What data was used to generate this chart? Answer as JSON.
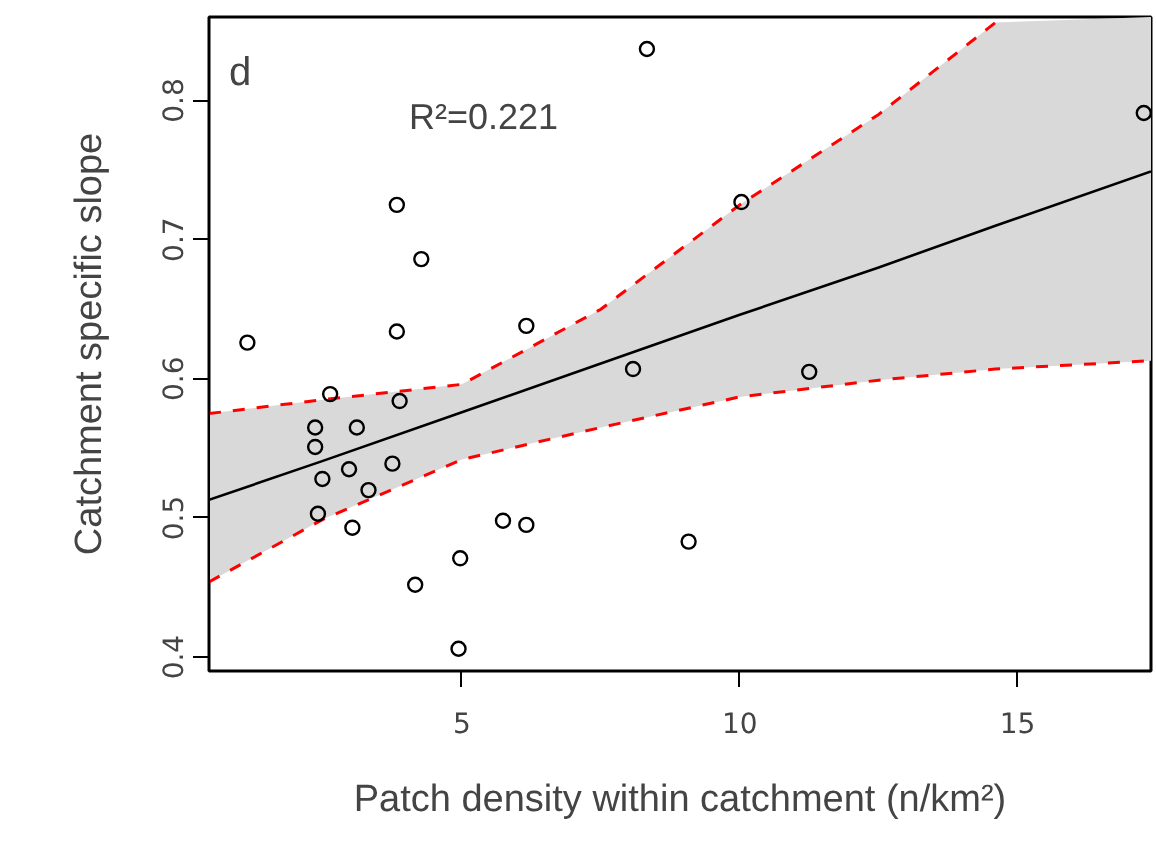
{
  "chart_data": {
    "type": "scatter",
    "xlabel": "Patch density within catchment (n/km²)",
    "ylabel": "Catchment specific slope",
    "annotations": [
      "d",
      "R²=0.221"
    ],
    "xlim": [
      0.45,
      17.4
    ],
    "ylim": [
      0.39,
      0.86
    ],
    "xticks": [
      5,
      10,
      15
    ],
    "yticks": [
      0.4,
      0.5,
      0.6,
      0.7,
      0.8
    ],
    "grid": false,
    "series": [
      {
        "marker": "circle",
        "color": "#000000",
        "x": [
          1.14,
          8.33,
          3.83,
          4.27,
          3.83,
          6.16,
          2.63,
          3.88,
          2.36,
          3.11,
          2.36,
          2.49,
          2.97,
          3.75,
          3.32,
          2.41,
          3.03,
          5.74,
          6.16,
          4.97,
          4.16,
          4.94,
          8.08,
          10.03,
          11.25,
          9.08,
          17.27
        ],
        "values": [
          0.626,
          0.837,
          0.725,
          0.686,
          0.634,
          0.638,
          0.589,
          0.584,
          0.565,
          0.565,
          0.551,
          0.528,
          0.535,
          0.539,
          0.52,
          0.503,
          0.493,
          0.498,
          0.495,
          0.471,
          0.452,
          0.406,
          0.607,
          0.727,
          0.605,
          0.483,
          0.791
        ]
      },
      {
        "type": "line",
        "line_style": "solid",
        "color": "#000000",
        "x": [
          0.45,
          2.5,
          5,
          7.5,
          10,
          12.5,
          14.6,
          17.4
        ],
        "values": [
          0.513,
          0.541,
          0.576,
          0.611,
          0.646,
          0.68,
          0.71,
          0.749
        ],
        "lower": [
          0.454,
          0.499,
          0.542,
          0.565,
          0.587,
          0.599,
          0.607,
          0.613
        ],
        "upper": [
          0.575,
          0.585,
          0.596,
          0.65,
          0.725,
          0.79,
          0.856,
          0.86
        ]
      },
      {
        "type": "line",
        "line_style": "dashed",
        "color": "#ff0000",
        "x": [
          0.45,
          2.5,
          5,
          7.5,
          10,
          12.5,
          14.6,
          17.4
        ],
        "values": [
          0.454,
          0.499,
          0.542,
          0.565,
          0.587,
          0.599,
          0.607,
          0.613
        ]
      },
      {
        "type": "line",
        "line_style": "dashed",
        "color": "#ff0000",
        "x": [
          0.45,
          2.5,
          5,
          7.5,
          10,
          12.5,
          14.6
        ],
        "values": [
          0.575,
          0.585,
          0.596,
          0.65,
          0.725,
          0.79,
          0.856
        ]
      }
    ]
  }
}
